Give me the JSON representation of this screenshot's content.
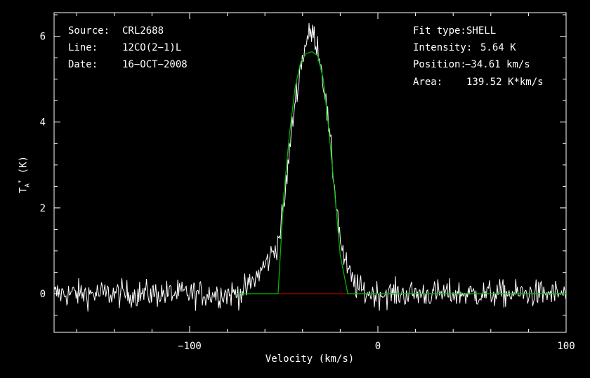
{
  "header_left": {
    "source_label": "Source:",
    "source_value": "CRL2688",
    "line_label": "Line:",
    "line_value": "12CO(2−1)L",
    "date_label": "Date:",
    "date_value": "16−OCT−2008"
  },
  "header_right": {
    "fit_type_label": "Fit type:",
    "fit_type_value": "SHELL",
    "intensity_label": "Intensity:",
    "intensity_value": "5.64 K",
    "position_label": "Position:",
    "position_value": "−34.61 km/s",
    "area_label": "Area:",
    "area_value": "139.52 K*km/s"
  },
  "colors": {
    "background": "#000000",
    "spectrum": "#ffffff",
    "fit": "#00c000",
    "baseline": "#e00000",
    "frame": "#ffffff"
  },
  "chart_data": {
    "type": "line",
    "title": "",
    "xlabel": "Velocity (km/s)",
    "ylabel_main": "T",
    "ylabel_sup": "*",
    "ylabel_sub": "A",
    "ylabel_unit": "(K)",
    "xlim": [
      -172,
      100
    ],
    "ylim": [
      -0.9,
      6.55
    ],
    "x_ticks": [
      -100,
      0,
      100
    ],
    "x_tick_labels": [
      "−100",
      "0",
      "100"
    ],
    "y_ticks": [
      0,
      2,
      4,
      6
    ],
    "y_tick_labels": [
      "0",
      "2",
      "4",
      "6"
    ],
    "series": [
      {
        "role": "spectrum",
        "noise_rms": 0.16,
        "channel_width": 0.45,
        "profile": [
          [
            -172,
            0
          ],
          [
            -75,
            0
          ],
          [
            -70,
            0.1
          ],
          [
            -66,
            0.3
          ],
          [
            -62,
            0.55
          ],
          [
            -58,
            0.8
          ],
          [
            -56,
            0.95
          ],
          [
            -53,
            1.2
          ],
          [
            -50,
            2.0
          ],
          [
            -47,
            3.3
          ],
          [
            -44,
            4.5
          ],
          [
            -41,
            5.3
          ],
          [
            -38,
            5.9
          ],
          [
            -35,
            6.1
          ],
          [
            -32,
            5.8
          ],
          [
            -29,
            5.0
          ],
          [
            -26,
            3.8
          ],
          [
            -23,
            2.5
          ],
          [
            -20,
            1.3
          ],
          [
            -18,
            0.8
          ],
          [
            -16,
            0.55
          ],
          [
            -14,
            0.35
          ],
          [
            -11,
            0.15
          ],
          [
            -7,
            0.03
          ],
          [
            -3,
            0
          ],
          [
            100,
            0
          ]
        ]
      },
      {
        "role": "fit",
        "x": [
          -75,
          -53,
          -50,
          -47,
          -44,
          -41,
          -38,
          -35,
          -32,
          -29,
          -26,
          -23,
          -20,
          -16,
          100
        ],
        "values": [
          0,
          0,
          2.3,
          3.7,
          4.8,
          5.4,
          5.6,
          5.64,
          5.55,
          5.0,
          3.8,
          2.4,
          0.9,
          0,
          0
        ]
      },
      {
        "role": "baseline",
        "x": [
          -53,
          -16
        ],
        "values": [
          0,
          0
        ]
      }
    ]
  }
}
